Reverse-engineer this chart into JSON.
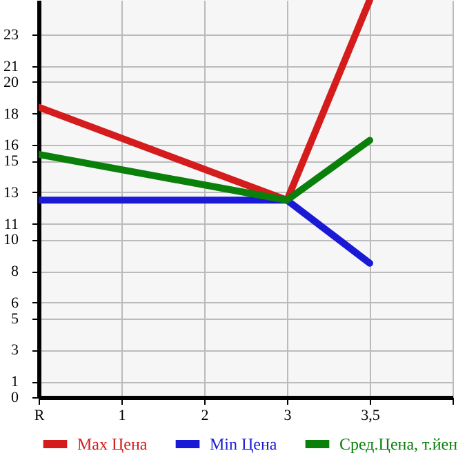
{
  "chart_data": {
    "type": "line",
    "categories": [
      "R",
      "1",
      "2",
      "3",
      "3,5",
      null
    ],
    "ylim": [
      0,
      25.2
    ],
    "yticks": [
      0,
      1,
      3,
      5,
      6,
      8,
      10,
      11,
      13,
      15,
      16,
      18,
      20,
      21,
      23
    ],
    "series": [
      {
        "name": "Max Цена",
        "color": "#d41c1c",
        "values": [
          18.4,
          null,
          null,
          12.5,
          25.2,
          null
        ]
      },
      {
        "name": "Min Цена",
        "color": "#1a1ad6",
        "values": [
          12.5,
          null,
          null,
          12.5,
          8.5,
          null
        ]
      },
      {
        "name": "Сред.Цена, т.йен",
        "color": "#0a7f0a",
        "values": [
          15.4,
          null,
          null,
          12.5,
          16.3,
          null
        ]
      }
    ],
    "grid": true,
    "legend": "bottom",
    "line_style": "solid"
  }
}
